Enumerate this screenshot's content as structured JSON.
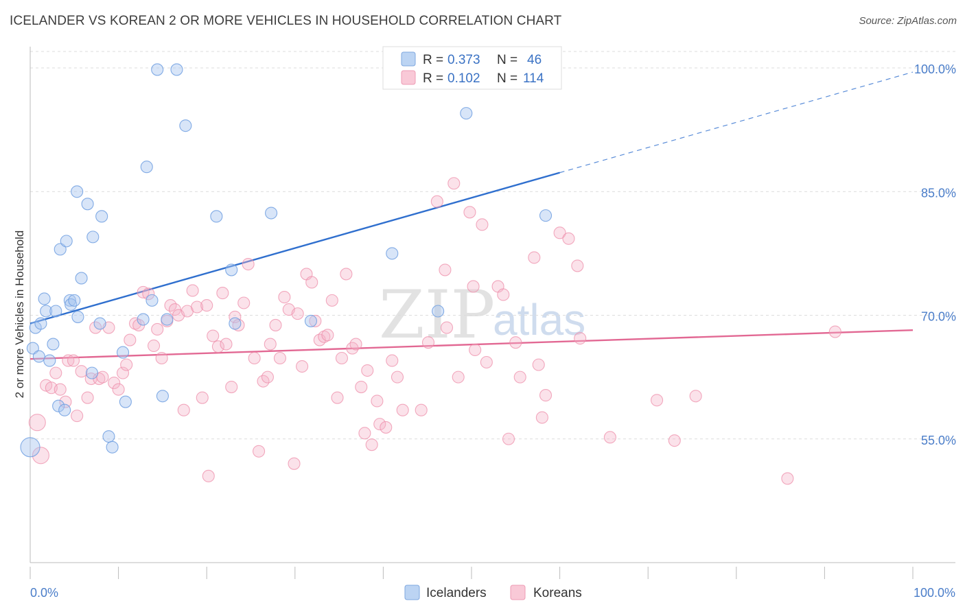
{
  "title": "ICELANDER VS KOREAN 2 OR MORE VEHICLES IN HOUSEHOLD CORRELATION CHART",
  "source": "Source: ZipAtlas.com",
  "watermark": {
    "zip": "ZIP",
    "atlas": "atlas"
  },
  "legend": {
    "rows": [
      {
        "r_label": "R =",
        "r_value": "0.373",
        "n_label": "N =",
        "n_value": "46",
        "color": "#a8c6f0"
      },
      {
        "r_label": "R =",
        "r_value": "0.102",
        "n_label": "N =",
        "n_value": "114",
        "color": "#f5b8c9"
      }
    ]
  },
  "bottom_legend": [
    "Icelanders",
    "Koreans"
  ],
  "chart_data": {
    "type": "scatter",
    "title": "ICELANDER VS KOREAN 2 OR MORE VEHICLES IN HOUSEHOLD CORRELATION CHART",
    "xlabel": "",
    "ylabel": "2 or more Vehicles in Household",
    "xlim": [
      0,
      100
    ],
    "ylim": [
      40,
      102
    ],
    "x_tick_labels": [
      "0.0%",
      "100.0%"
    ],
    "y_ticks": [
      55,
      70,
      85,
      100
    ],
    "y_tick_labels": [
      "55.0%",
      "70.0%",
      "85.0%",
      "100.0%"
    ],
    "grid": "horizontal dashed",
    "legend_position": "top-center",
    "colors": {
      "icelanders": "#6d9ee0",
      "koreans": "#ee8eaa",
      "icelanders_line": "#2f6fce",
      "koreans_line": "#e26893"
    },
    "series": [
      {
        "name": "Icelanders",
        "points": [
          [
            0.3,
            66
          ],
          [
            0.6,
            68.5
          ],
          [
            1.0,
            65
          ],
          [
            1.2,
            69
          ],
          [
            1.6,
            72
          ],
          [
            1.8,
            70.5
          ],
          [
            2.2,
            64.5
          ],
          [
            2.6,
            66.5
          ],
          [
            2.9,
            70.5
          ],
          [
            3.2,
            59
          ],
          [
            3.4,
            78
          ],
          [
            3.9,
            58.5
          ],
          [
            4.1,
            79
          ],
          [
            4.5,
            71.8
          ],
          [
            4.6,
            71.3
          ],
          [
            5.0,
            71.8
          ],
          [
            5.3,
            85
          ],
          [
            5.4,
            69.8
          ],
          [
            5.8,
            74.5
          ],
          [
            6.5,
            83.5
          ],
          [
            7.0,
            63
          ],
          [
            7.1,
            79.5
          ],
          [
            7.9,
            69
          ],
          [
            8.1,
            82
          ],
          [
            8.9,
            55.3
          ],
          [
            9.3,
            54
          ],
          [
            10.5,
            65.5
          ],
          [
            10.8,
            59.5
          ],
          [
            12.8,
            69.5
          ],
          [
            13.2,
            88
          ],
          [
            13.8,
            71.8
          ],
          [
            14.4,
            99.8
          ],
          [
            15.0,
            60.2
          ],
          [
            15.5,
            69.5
          ],
          [
            16.6,
            99.8
          ],
          [
            17.6,
            93
          ],
          [
            21.1,
            82
          ],
          [
            22.8,
            75.5
          ],
          [
            23.2,
            69
          ],
          [
            27.3,
            82.4
          ],
          [
            31.8,
            69.3
          ],
          [
            41.0,
            77.5
          ],
          [
            46.2,
            70.5
          ],
          [
            49.4,
            94.5
          ],
          [
            58.4,
            82.1
          ],
          [
            0.0,
            54
          ]
        ],
        "trend": {
          "x": [
            0,
            60
          ],
          "y": [
            69,
            87.3
          ],
          "dashed_to": [
            100,
            99.5
          ]
        }
      },
      {
        "name": "Koreans",
        "points": [
          [
            0.8,
            57
          ],
          [
            1.2,
            53
          ],
          [
            1.8,
            61.5
          ],
          [
            2.4,
            61.2
          ],
          [
            2.9,
            63
          ],
          [
            3.4,
            61
          ],
          [
            4.0,
            59.5
          ],
          [
            4.3,
            64.5
          ],
          [
            4.9,
            64.5
          ],
          [
            5.3,
            57.8
          ],
          [
            5.8,
            63.2
          ],
          [
            6.5,
            60
          ],
          [
            6.9,
            62.3
          ],
          [
            7.4,
            68.5
          ],
          [
            7.8,
            62.3
          ],
          [
            8.2,
            62.5
          ],
          [
            8.9,
            68.5
          ],
          [
            9.5,
            61.8
          ],
          [
            10.0,
            61
          ],
          [
            10.5,
            63
          ],
          [
            10.9,
            64
          ],
          [
            11.3,
            67
          ],
          [
            11.9,
            69
          ],
          [
            12.3,
            68.8
          ],
          [
            12.8,
            72.8
          ],
          [
            13.4,
            72.6
          ],
          [
            14.0,
            66.3
          ],
          [
            14.4,
            68.3
          ],
          [
            14.9,
            64.8
          ],
          [
            15.5,
            69.3
          ],
          [
            15.9,
            71.2
          ],
          [
            16.4,
            70.7
          ],
          [
            16.8,
            70
          ],
          [
            17.4,
            58.5
          ],
          [
            17.8,
            70.5
          ],
          [
            18.4,
            73
          ],
          [
            18.9,
            71
          ],
          [
            19.5,
            60
          ],
          [
            20.0,
            71.2
          ],
          [
            20.2,
            50.5
          ],
          [
            20.7,
            67.5
          ],
          [
            21.3,
            66.2
          ],
          [
            21.8,
            72.7
          ],
          [
            22.2,
            66.5
          ],
          [
            22.8,
            61.3
          ],
          [
            23.2,
            69.8
          ],
          [
            23.6,
            68.8
          ],
          [
            24.2,
            71.5
          ],
          [
            24.7,
            76.2
          ],
          [
            25.4,
            64.8
          ],
          [
            25.9,
            53.5
          ],
          [
            26.4,
            62
          ],
          [
            26.9,
            62.5
          ],
          [
            27.2,
            66.5
          ],
          [
            27.8,
            68.8
          ],
          [
            28.3,
            64.8
          ],
          [
            28.8,
            72.2
          ],
          [
            29.3,
            70.7
          ],
          [
            29.9,
            52
          ],
          [
            30.3,
            70.2
          ],
          [
            30.8,
            63.8
          ],
          [
            31.3,
            75
          ],
          [
            31.9,
            74
          ],
          [
            32.3,
            69.3
          ],
          [
            32.8,
            67
          ],
          [
            33.3,
            67.4
          ],
          [
            33.7,
            67.6
          ],
          [
            34.2,
            71.8
          ],
          [
            34.8,
            60
          ],
          [
            35.3,
            64.8
          ],
          [
            35.8,
            75
          ],
          [
            36.5,
            66
          ],
          [
            36.9,
            66.5
          ],
          [
            37.5,
            61.3
          ],
          [
            37.9,
            55.7
          ],
          [
            38.2,
            63.3
          ],
          [
            38.7,
            54.3
          ],
          [
            39.3,
            59.6
          ],
          [
            39.6,
            56.8
          ],
          [
            40.3,
            56.4
          ],
          [
            41.0,
            64.5
          ],
          [
            41.6,
            62.5
          ],
          [
            42.2,
            58.5
          ],
          [
            44.3,
            58.5
          ],
          [
            45.1,
            66.7
          ],
          [
            46.1,
            83.8
          ],
          [
            47.0,
            75.5
          ],
          [
            47.2,
            68.5
          ],
          [
            48.0,
            86
          ],
          [
            48.5,
            62.5
          ],
          [
            49.8,
            82.5
          ],
          [
            50.2,
            73.5
          ],
          [
            50.4,
            65.8
          ],
          [
            51.2,
            81
          ],
          [
            51.7,
            64.3
          ],
          [
            53.0,
            73.5
          ],
          [
            53.6,
            72.5
          ],
          [
            54.2,
            55
          ],
          [
            55.0,
            66.7
          ],
          [
            55.5,
            62.5
          ],
          [
            57.1,
            77
          ],
          [
            57.6,
            64
          ],
          [
            58.0,
            57.6
          ],
          [
            58.4,
            60.3
          ],
          [
            60.0,
            80
          ],
          [
            61.0,
            79.3
          ],
          [
            62.0,
            76
          ],
          [
            62.3,
            67.2
          ],
          [
            65.7,
            55.2
          ],
          [
            71.0,
            59.7
          ],
          [
            73.0,
            54.8
          ],
          [
            75.4,
            60.2
          ],
          [
            85.8,
            50.2
          ],
          [
            91.2,
            68
          ]
        ],
        "trend": {
          "x": [
            0,
            100
          ],
          "y": [
            64.7,
            68.2
          ]
        }
      }
    ]
  }
}
